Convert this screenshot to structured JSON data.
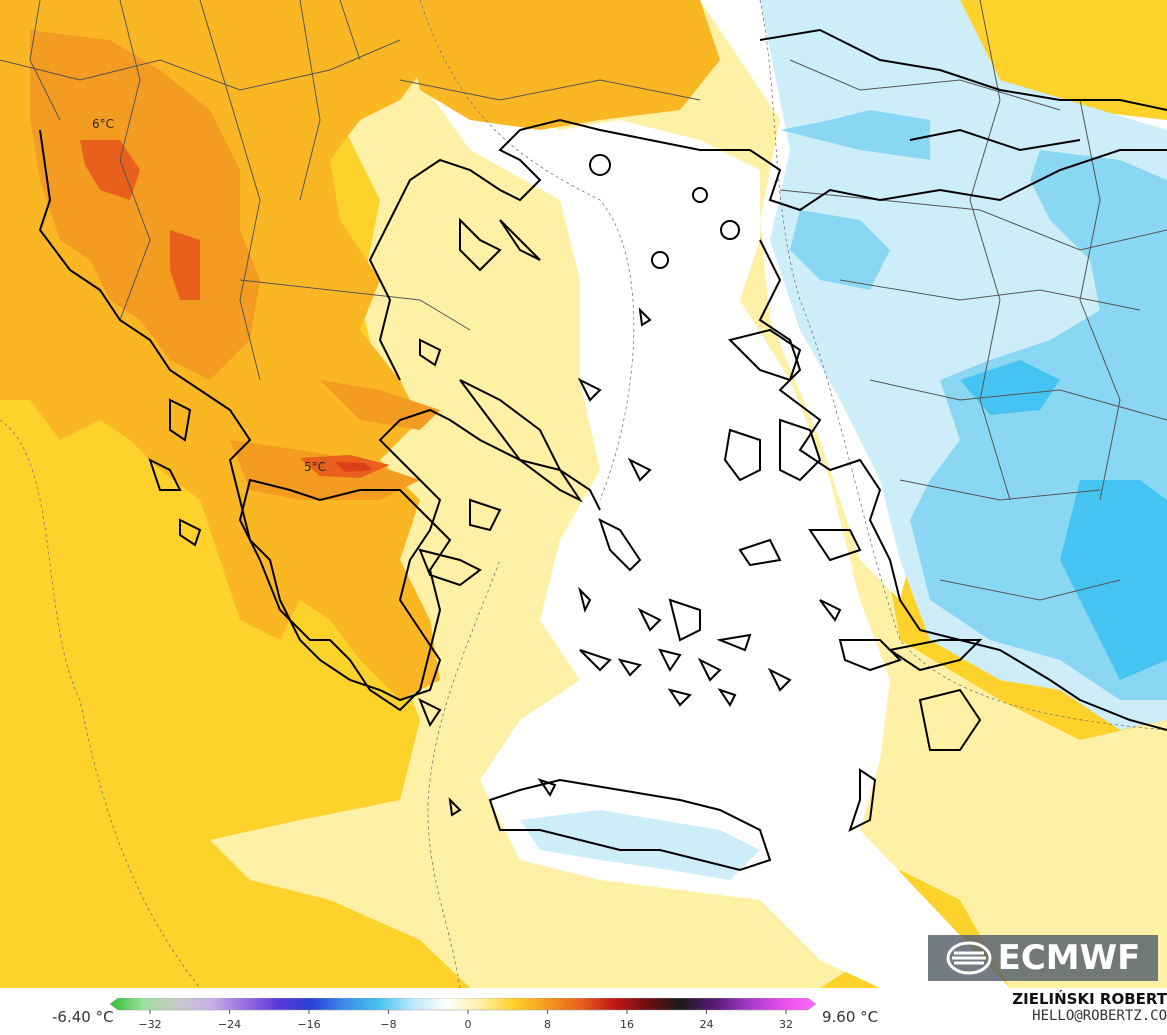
{
  "map": {
    "labels": [
      {
        "id": "albania-max",
        "text": "6°C"
      },
      {
        "id": "greece-max",
        "text": "5°C"
      }
    ],
    "colors": {
      "strong_orange": "#f49b21",
      "orange": "#fbb723",
      "yellow": "#fdd22a",
      "light_yellow": "#fef0a5",
      "white": "#ffffff",
      "light_blue": "#cdeef9",
      "blue": "#8ad7f3",
      "deep_blue": "#45c4f2",
      "land_outline": "#000000",
      "border": "#555555"
    }
  },
  "logo": {
    "text": "ECMWF"
  },
  "legend": {
    "min_label": "-6.40 °C",
    "max_label": "9.60 °C",
    "ticks": [
      "−32",
      "−24",
      "−16",
      "−8",
      "0",
      "8",
      "16",
      "24",
      "32"
    ],
    "gradient_colors": [
      "#2fbf2f",
      "#9ee09e",
      "#c9c9c9",
      "#c8b2e6",
      "#9a6ee0",
      "#5a3ad8",
      "#2a3fd8",
      "#3f8ee8",
      "#47c3ef",
      "#bde9f8",
      "#ffffff",
      "#fdf0a8",
      "#fdd22a",
      "#f49b21",
      "#e8601c",
      "#c01818",
      "#6a0f0f",
      "#1a1a1a",
      "#5a1a7a",
      "#a03dc8",
      "#e84ee8",
      "#ff6dff"
    ]
  },
  "credit": {
    "name": "ZIELIŃSKI ROBERT",
    "email": "HELLO@ROBERTZ.CO"
  }
}
